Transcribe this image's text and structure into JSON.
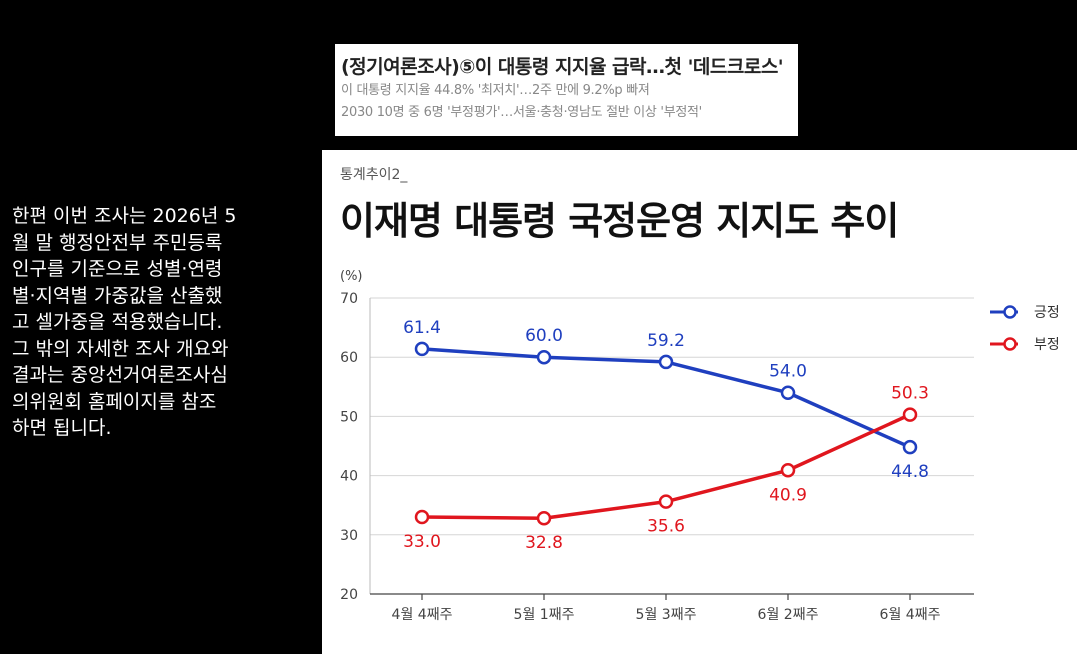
{
  "side_text": "한편 이번 조사는 2026년 5\n월 말 행정안전부 주민등록\n인구를 기준으로 성별·연령\n별·지역별 가중값을 산출했\n고 셀가중을 적용했습니다.\n그 밖의 자세한 조사 개요와\n결과는 중앙선거여론조사심\n의위원회 홈페이지를 참조\n하면 됩니다.",
  "headline": {
    "title": "(정기여론조사)⑤이 대통령 지지율 급락…첫 '데드크로스'",
    "sub1": "이 대통령 지지율 44.8% '최저치'…2주 만에 9.2%p 빠져",
    "sub2": "2030 10명 중 6명 '부정평가'…서울·충청·영남도 절반 이상 '부정적'"
  },
  "chart_data": {
    "type": "line",
    "kicker": "통계추이2_",
    "title": "이재명 대통령 국정운영 지지도 추이",
    "unit": "(%)",
    "categories": [
      "4월 4째주",
      "5월 1째주",
      "5월 3째주",
      "6월 2째주",
      "6월 4째주"
    ],
    "ylim": [
      20,
      70
    ],
    "yticks": [
      20,
      30,
      40,
      50,
      60,
      70
    ],
    "grid": "horizontal",
    "legend_position": "right",
    "series": [
      {
        "name": "긍정",
        "color": "#1f3fbf",
        "values": [
          61.4,
          60.0,
          59.2,
          54.0,
          44.8
        ],
        "labels": [
          "61.4",
          "60.0",
          "59.2",
          "54.0",
          "44.8"
        ]
      },
      {
        "name": "부정",
        "color": "#e0161e",
        "values": [
          33.0,
          32.8,
          35.6,
          40.9,
          50.3
        ],
        "labels": [
          "33.0",
          "32.8",
          "35.6",
          "40.9",
          "50.3"
        ]
      }
    ]
  }
}
